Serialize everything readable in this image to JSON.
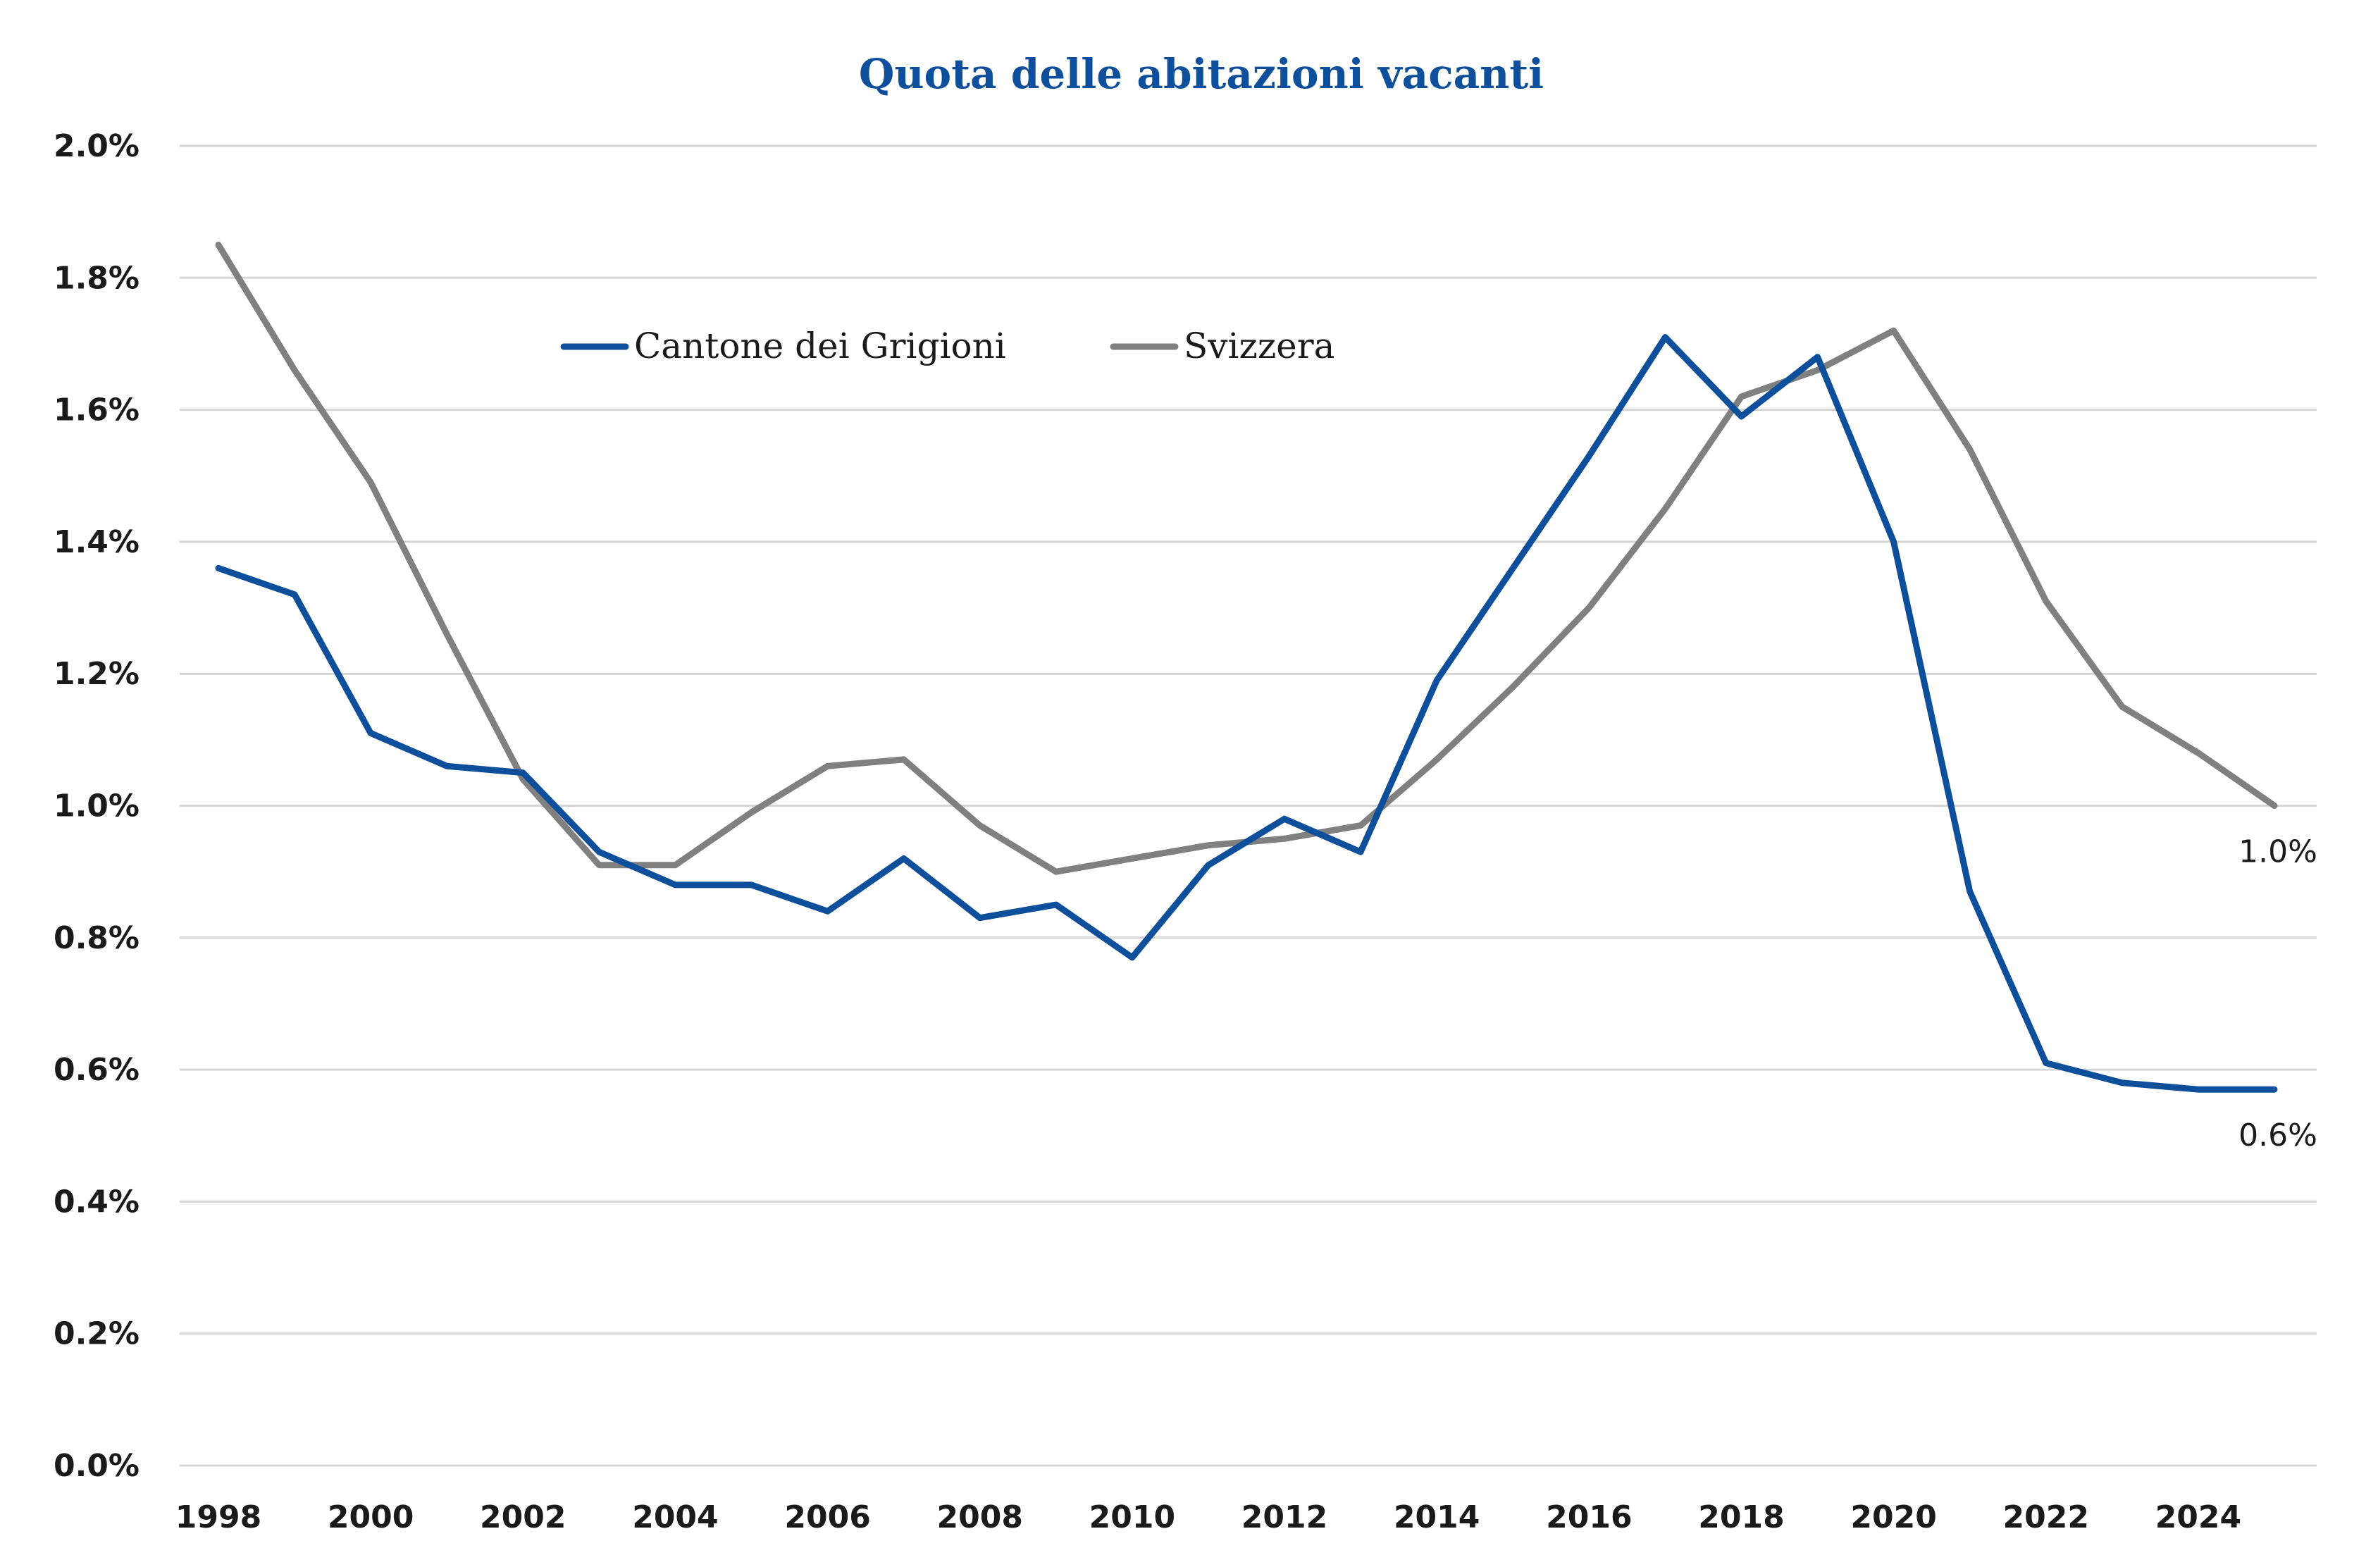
{
  "chart_data": {
    "type": "line",
    "title": "Quota delle abitazioni vacanti",
    "xlabel": "",
    "ylabel": "",
    "x": [
      1998,
      1999,
      2000,
      2001,
      2002,
      2003,
      2004,
      2005,
      2006,
      2007,
      2008,
      2009,
      2010,
      2011,
      2012,
      2013,
      2014,
      2015,
      2016,
      2017,
      2018,
      2019,
      2020,
      2021,
      2022,
      2023,
      2024,
      2025
    ],
    "xlim": [
      1998,
      2025
    ],
    "x_tick_labels": [
      "1998",
      "2000",
      "2002",
      "2004",
      "2006",
      "2008",
      "2010",
      "2012",
      "2014",
      "2016",
      "2018",
      "2020",
      "2022",
      "2024"
    ],
    "ylim": [
      0,
      2.0
    ],
    "y_ticks": [
      0,
      0.2,
      0.4,
      0.6,
      0.8,
      1.0,
      1.2,
      1.4,
      1.6,
      1.8,
      2.0
    ],
    "y_tick_labels": [
      "0.0%",
      "0.2%",
      "0.4%",
      "0.6%",
      "0.8%",
      "1.0%",
      "1.2%",
      "1.4%",
      "1.6%",
      "1.8%",
      "2.0%"
    ],
    "grid": true,
    "legend_position": "top-left inside",
    "series": [
      {
        "name": "Cantone dei Grigioni",
        "color": "#0e4f9c",
        "values": [
          1.36,
          1.32,
          1.11,
          1.06,
          1.05,
          0.93,
          0.88,
          0.88,
          0.84,
          0.92,
          0.83,
          0.85,
          0.77,
          0.91,
          0.98,
          0.93,
          1.19,
          1.36,
          1.53,
          1.71,
          1.59,
          1.68,
          1.4,
          0.87,
          0.61,
          0.58,
          0.57,
          0.57
        ],
        "end_label": "0.6%"
      },
      {
        "name": "Svizzera",
        "color": "#808080",
        "values": [
          1.85,
          1.66,
          1.49,
          1.26,
          1.04,
          0.91,
          0.91,
          0.99,
          1.06,
          1.07,
          0.97,
          0.9,
          0.92,
          0.94,
          0.95,
          0.97,
          1.07,
          1.18,
          1.3,
          1.45,
          1.62,
          1.66,
          1.72,
          1.54,
          1.31,
          1.15,
          1.08,
          1.0
        ],
        "end_label": "1.0%"
      }
    ],
    "title_color": "#0e4f9c"
  }
}
